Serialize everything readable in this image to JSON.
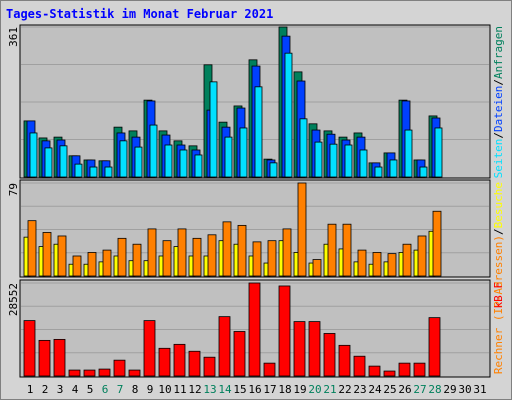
{
  "chart_data": [
    {
      "type": "bar",
      "title": "Tages-Statistik im Monat Februar 2021",
      "ylim": [
        0,
        361
      ],
      "yticks": [
        361
      ],
      "legend_separator": "/",
      "series": [
        {
          "name": "Anfragen",
          "color": "#00805c",
          "values": [
            135,
            94,
            96,
            51,
            41,
            39,
            120,
            111,
            185,
            111,
            87,
            75,
            270,
            132,
            171,
            282,
            43,
            361,
            253,
            128,
            111,
            96,
            106,
            34,
            58,
            185,
            41,
            147,
            0,
            0,
            0
          ]
        },
        {
          "name": "Dateien",
          "color": "#0040ff",
          "values": [
            135,
            87,
            89,
            51,
            41,
            39,
            106,
            96,
            183,
            101,
            77,
            65,
            161,
            120,
            166,
            267,
            41,
            339,
            231,
            113,
            103,
            89,
            96,
            34,
            58,
            183,
            41,
            142,
            0,
            0,
            0
          ]
        },
        {
          "name": "Seiten",
          "color": "#00e0ff",
          "values": [
            106,
            70,
            75,
            31,
            24,
            24,
            87,
            72,
            125,
            77,
            65,
            53,
            229,
            96,
            118,
            217,
            34,
            298,
            140,
            84,
            79,
            77,
            65,
            24,
            41,
            113,
            24,
            118,
            0,
            0,
            0
          ]
        }
      ]
    },
    {
      "type": "bar",
      "ylim": [
        0,
        79
      ],
      "yticks": [
        79
      ],
      "legend_separator": "/",
      "series": [
        {
          "name": "Besuche",
          "color": "#ffff00",
          "values": [
            33,
            25,
            27,
            10,
            10,
            12,
            17,
            13,
            13,
            17,
            25,
            17,
            17,
            30,
            27,
            17,
            11,
            30,
            20,
            11,
            27,
            23,
            12,
            10,
            12,
            20,
            22,
            38,
            0,
            0,
            0
          ]
        },
        {
          "name": "Rechner (IP-Adressen)",
          "color": "#ff8000",
          "values": [
            47,
            37,
            34,
            17,
            20,
            22,
            32,
            27,
            40,
            30,
            40,
            32,
            35,
            46,
            43,
            29,
            30,
            40,
            79,
            14,
            44,
            44,
            22,
            20,
            19,
            27,
            34,
            55,
            0,
            0,
            0
          ]
        }
      ]
    },
    {
      "type": "bar",
      "ylim": [
        0,
        28552
      ],
      "yticks": [
        28552
      ],
      "categories": [
        "1",
        "2",
        "3",
        "4",
        "5",
        "6",
        "7",
        "8",
        "9",
        "10",
        "11",
        "12",
        "13",
        "14",
        "15",
        "16",
        "17",
        "18",
        "19",
        "20",
        "21",
        "22",
        "23",
        "24",
        "25",
        "26",
        "27",
        "28",
        "29",
        "30",
        "31"
      ],
      "label_colors": [
        "#000000",
        "#000000",
        "#000000",
        "#000000",
        "#000000",
        "#00805c",
        "#00805c",
        "#000000",
        "#000000",
        "#000000",
        "#000000",
        "#000000",
        "#00805c",
        "#00805c",
        "#000000",
        "#000000",
        "#000000",
        "#000000",
        "#000000",
        "#00805c",
        "#00805c",
        "#000000",
        "#000000",
        "#000000",
        "#000000",
        "#000000",
        "#00805c",
        "#00805c",
        "#000000",
        "#000000",
        "#000000"
      ],
      "series": [
        {
          "name": "kB F",
          "color": "#ff0000",
          "values": [
            17010,
            10935,
            11239,
            1822,
            1822,
            2126,
            4860,
            1822,
            17010,
            8505,
            9720,
            7594,
            5771,
            18225,
            13669,
            28552,
            3949,
            27641,
            16706,
            16706,
            13061,
            9416,
            6075,
            3037,
            1519,
            3949,
            3949,
            17921,
            0,
            0,
            0
          ]
        }
      ]
    }
  ]
}
